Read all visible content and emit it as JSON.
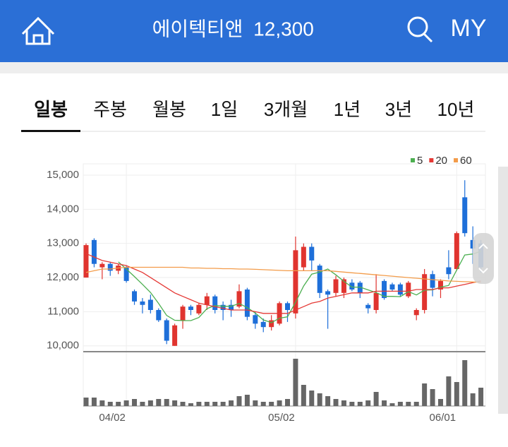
{
  "header": {
    "name": "에이텍티앤",
    "price": "12,300",
    "my": "MY"
  },
  "tabs": {
    "items": [
      "일봉",
      "주봉",
      "월봉",
      "1일",
      "3개월",
      "1년",
      "3년",
      "10년"
    ],
    "active": 0
  },
  "chart_data": {
    "type": "candlestick",
    "categories": [
      null,
      null,
      null,
      null,
      null,
      "04/02",
      null,
      null,
      null,
      null,
      null,
      null,
      null,
      null,
      null,
      null,
      null,
      null,
      null,
      null,
      null,
      null,
      null,
      null,
      null,
      null,
      "05/02",
      null,
      null,
      null,
      null,
      null,
      null,
      null,
      null,
      null,
      null,
      null,
      null,
      null,
      null,
      null,
      null,
      null,
      null,
      null,
      "06/01",
      null,
      null,
      null
    ],
    "open": [
      12000,
      13100,
      12300,
      12400,
      12200,
      12300,
      11600,
      11300,
      11350,
      11050,
      10750,
      10000,
      10750,
      11150,
      10950,
      11200,
      11450,
      11200,
      11200,
      11150,
      11650,
      10900,
      10700,
      10550,
      10650,
      11250,
      10950,
      12300,
      12900,
      12350,
      11600,
      11550,
      11550,
      11850,
      11850,
      11200,
      11050,
      11900,
      11800,
      11800,
      11450,
      10900,
      11050,
      12100,
      11650,
      12300,
      12250,
      14350,
      13100,
      13000
    ],
    "high": [
      13000,
      13150,
      12450,
      12450,
      12400,
      12350,
      11650,
      11400,
      11500,
      11100,
      10800,
      10650,
      11200,
      11200,
      11250,
      11550,
      11500,
      11300,
      11350,
      11800,
      11700,
      11000,
      10800,
      10900,
      11300,
      11300,
      13200,
      13000,
      13000,
      12400,
      11650,
      12050,
      12000,
      11950,
      11900,
      11250,
      12100,
      11950,
      11850,
      11850,
      11900,
      11100,
      12250,
      12200,
      11950,
      12800,
      13350,
      14850,
      13500,
      13100
    ],
    "low": [
      12000,
      12300,
      11950,
      12050,
      12100,
      11850,
      11200,
      10950,
      10950,
      10700,
      10050,
      10000,
      10500,
      10900,
      10900,
      11050,
      10950,
      10750,
      10850,
      11100,
      10750,
      10500,
      10400,
      10450,
      10600,
      10700,
      10800,
      12200,
      12200,
      11400,
      10500,
      11450,
      11400,
      11600,
      11400,
      10950,
      10950,
      11350,
      11600,
      11450,
      11400,
      10750,
      10950,
      11450,
      11400,
      11950,
      12200,
      13200,
      12400,
      12150
    ],
    "close": [
      12950,
      12400,
      12400,
      12200,
      12350,
      11900,
      11300,
      11200,
      11050,
      10750,
      10150,
      10600,
      11150,
      11050,
      11200,
      11450,
      11050,
      11050,
      11050,
      11600,
      10850,
      10650,
      10550,
      10750,
      11250,
      11050,
      12800,
      12900,
      12500,
      11550,
      11500,
      11950,
      11950,
      11650,
      11550,
      11100,
      11550,
      11400,
      11650,
      11500,
      11850,
      11050,
      12100,
      11700,
      11900,
      12100,
      13300,
      13300,
      12850,
      12300
    ],
    "volume": [
      12,
      12,
      8,
      6,
      6,
      8,
      10,
      6,
      8,
      10,
      10,
      8,
      6,
      4,
      6,
      6,
      6,
      6,
      8,
      14,
      16,
      8,
      6,
      6,
      8,
      10,
      67,
      30,
      22,
      18,
      14,
      10,
      8,
      6,
      6,
      8,
      20,
      8,
      4,
      6,
      6,
      6,
      32,
      24,
      10,
      42,
      34,
      65,
      18,
      26
    ],
    "up_color": "#e0342f",
    "down_color": "#1e6fd9",
    "volume_color": "#666666",
    "series": [
      {
        "name": "5",
        "color": "#4caf50",
        "values": [
          null,
          null,
          null,
          null,
          12460,
          12250,
          12030,
          11800,
          11560,
          11240,
          10890,
          10750,
          10740,
          10740,
          10830,
          11090,
          11180,
          11160,
          11160,
          11240,
          11120,
          10960,
          10760,
          10680,
          10810,
          10850,
          11280,
          11750,
          12100,
          12160,
          12250,
          12080,
          11890,
          11720,
          11720,
          11640,
          11560,
          11450,
          11450,
          11440,
          11590,
          11490,
          11630,
          11640,
          11720,
          11770,
          12220,
          12660,
          12690,
          12770
        ]
      },
      {
        "name": "20",
        "color": "#e53935",
        "values": [
          12700,
          12600,
          12500,
          12450,
          12400,
          12350,
          12250,
          12150,
          12000,
          11850,
          11700,
          11550,
          11450,
          11350,
          11250,
          11200,
          11150,
          11100,
          11050,
          11050,
          11050,
          11000,
          10950,
          10950,
          10950,
          10950,
          11050,
          11150,
          11250,
          11300,
          11400,
          11450,
          11500,
          11550,
          11550,
          11550,
          11600,
          11600,
          11600,
          11600,
          11600,
          11650,
          11650,
          11650,
          11700,
          11700,
          11750,
          11800,
          11850,
          11900
        ]
      },
      {
        "name": "60",
        "color": "#f39c4a",
        "values": [
          12150,
          12200,
          12250,
          12250,
          12280,
          12300,
          12300,
          12300,
          12300,
          12300,
          12300,
          12300,
          12300,
          12280,
          12280,
          12270,
          12270,
          12260,
          12260,
          12250,
          12250,
          12240,
          12230,
          12220,
          12210,
          12200,
          12200,
          12200,
          12200,
          12200,
          12200,
          12180,
          12160,
          12140,
          12120,
          12100,
          12080,
          12060,
          12040,
          12020,
          12000,
          11980,
          11960,
          11940,
          11920,
          11900,
          11890,
          11880,
          11870,
          11860
        ]
      }
    ],
    "ylim": [
      9830,
      15330
    ],
    "yticks": [
      {
        "value": 10000,
        "label": "10,000"
      },
      {
        "value": 11000,
        "label": "11,000"
      },
      {
        "value": 12000,
        "label": "12,000"
      },
      {
        "value": 13000,
        "label": "13,000"
      },
      {
        "value": 14000,
        "label": "14,000"
      },
      {
        "value": 15000,
        "label": "15,000"
      }
    ],
    "grid": true
  }
}
